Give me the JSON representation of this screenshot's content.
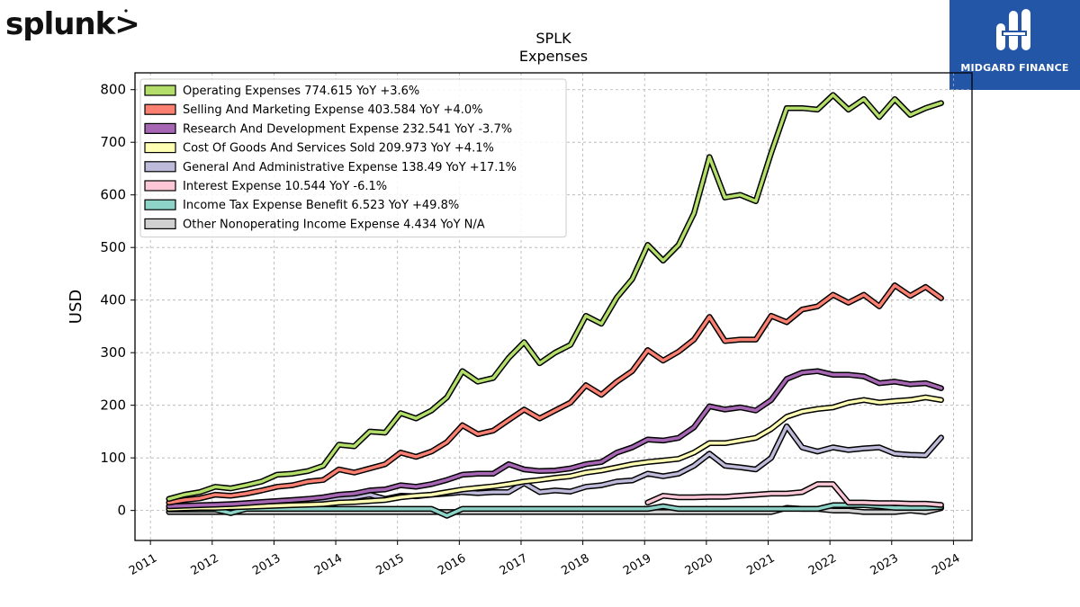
{
  "brand": {
    "left_logo_text": "splunk>",
    "right_logo_text": "MIDGARD FINANCE",
    "right_logo_bg": "#2456a8"
  },
  "chart_data": {
    "type": "line",
    "title": "SPLK",
    "subtitle": "Expenses",
    "xlabel": "",
    "ylabel": "USD",
    "xlim": [
      2010.75,
      2024.3
    ],
    "ylim": [
      -57,
      832
    ],
    "grid": true,
    "legend_position": "top-left",
    "x_ticks": [
      "2011",
      "2012",
      "2013",
      "2014",
      "2015",
      "2016",
      "2017",
      "2018",
      "2019",
      "2020",
      "2021",
      "2022",
      "2023",
      "2024"
    ],
    "y_ticks": [
      "0",
      "100",
      "200",
      "300",
      "400",
      "500",
      "600",
      "700",
      "800"
    ],
    "x": [
      2011.3,
      2011.55,
      2011.8,
      2012.05,
      2012.3,
      2012.55,
      2012.8,
      2013.05,
      2013.3,
      2013.55,
      2013.8,
      2014.05,
      2014.3,
      2014.55,
      2014.8,
      2015.05,
      2015.3,
      2015.55,
      2015.8,
      2016.05,
      2016.3,
      2016.55,
      2016.8,
      2017.05,
      2017.3,
      2017.55,
      2017.8,
      2018.05,
      2018.3,
      2018.55,
      2018.8,
      2019.05,
      2019.3,
      2019.55,
      2019.8,
      2020.05,
      2020.3,
      2020.55,
      2020.8,
      2021.05,
      2021.3,
      2021.55,
      2021.8,
      2022.05,
      2022.3,
      2022.55,
      2022.8,
      2023.05,
      2023.3,
      2023.55,
      2023.8
    ],
    "series": [
      {
        "name": "Other Nonoperating Income Expense",
        "label": "Other Nonoperating Income Expense  4.434 YoY N/A",
        "color": "#d0d0d0",
        "values": [
          -3,
          -3,
          -3,
          -3,
          -3,
          -3,
          -3,
          -3,
          -3,
          -3,
          -3,
          -3,
          -3,
          -3,
          -3,
          -3,
          -3,
          -3,
          -3,
          -3,
          -3,
          -3,
          -3,
          -3,
          -3,
          -3,
          -3,
          -3,
          -3,
          -3,
          -3,
          -3,
          -3,
          -3,
          -3,
          -3,
          -3,
          -3,
          -3,
          -3,
          5,
          3,
          3,
          0,
          0,
          -3,
          -3,
          -3,
          0,
          -3,
          4.4
        ]
      },
      {
        "name": "Income Tax Expense Benefit",
        "label": "Income Tax Expense Benefit  6.523 YoY +49.8%",
        "color": "#8dd3c7",
        "values": [
          2,
          2,
          2,
          2,
          -5,
          3,
          3,
          3,
          3,
          3,
          3,
          3,
          3,
          3,
          3,
          3,
          3,
          3,
          -10,
          3,
          3,
          3,
          3,
          3,
          3,
          3,
          3,
          3,
          3,
          3,
          3,
          3,
          8,
          3,
          3,
          3,
          3,
          3,
          3,
          3,
          3,
          3,
          3,
          10,
          10,
          10,
          8,
          5,
          5,
          5,
          6.5
        ]
      },
      {
        "name": "Interest Expense",
        "label": "Interest Expense  10.544 YoY -6.1%",
        "color": "#fbc6d6",
        "values": [
          null,
          null,
          null,
          null,
          null,
          null,
          null,
          null,
          null,
          null,
          null,
          null,
          null,
          null,
          null,
          null,
          null,
          null,
          null,
          null,
          null,
          null,
          null,
          null,
          null,
          null,
          null,
          null,
          null,
          null,
          null,
          15,
          28,
          25,
          25,
          26,
          26,
          28,
          30,
          32,
          32,
          35,
          50,
          50,
          15,
          15,
          14,
          14,
          13,
          13,
          10.5
        ]
      },
      {
        "name": "General And Administrative Expense",
        "label": "General And Administrative Expense  138.49 YoY +17.1%",
        "color": "#bebada",
        "values": [
          8,
          8,
          9,
          10,
          12,
          13,
          14,
          16,
          17,
          17,
          18,
          22,
          25,
          30,
          22,
          28,
          27,
          30,
          32,
          35,
          33,
          35,
          35,
          52,
          35,
          38,
          36,
          45,
          48,
          55,
          57,
          70,
          65,
          70,
          85,
          108,
          85,
          82,
          78,
          100,
          160,
          120,
          112,
          120,
          115,
          118,
          120,
          108,
          106,
          105,
          138.5
        ]
      },
      {
        "name": "Cost Of Goods And Services Sold",
        "label": "Cost Of Goods And Services Sold  209.973 YoY +4.1%",
        "color": "#ffffb3",
        "values": [
          3,
          4,
          5,
          5,
          6,
          7,
          8,
          9,
          10,
          11,
          12,
          15,
          16,
          18,
          20,
          25,
          28,
          30,
          35,
          40,
          43,
          46,
          50,
          55,
          58,
          62,
          65,
          72,
          76,
          82,
          88,
          92,
          95,
          98,
          110,
          128,
          128,
          133,
          138,
          155,
          178,
          188,
          193,
          196,
          205,
          210,
          205,
          208,
          210,
          215,
          210
        ]
      },
      {
        "name": "Research And Development Expense",
        "label": "Research And Development Expense  232.541 YoY -3.7%",
        "color": "#a666b4",
        "values": [
          8,
          9,
          10,
          11,
          12,
          14,
          16,
          18,
          20,
          22,
          25,
          30,
          32,
          38,
          40,
          48,
          45,
          50,
          58,
          68,
          70,
          70,
          88,
          78,
          75,
          76,
          80,
          88,
          92,
          110,
          120,
          135,
          133,
          138,
          158,
          198,
          192,
          196,
          190,
          210,
          250,
          262,
          265,
          258,
          258,
          255,
          242,
          245,
          240,
          242,
          232.5
        ]
      },
      {
        "name": "Selling And Marketing Expense",
        "label": "Selling And Marketing Expense  403.584 YoY +4.0%",
        "color": "#fb8072",
        "values": [
          15,
          20,
          23,
          30,
          28,
          32,
          38,
          45,
          48,
          55,
          58,
          78,
          72,
          80,
          88,
          110,
          102,
          112,
          130,
          162,
          145,
          152,
          172,
          192,
          175,
          190,
          205,
          238,
          220,
          245,
          265,
          305,
          285,
          302,
          325,
          368,
          322,
          325,
          325,
          370,
          358,
          382,
          388,
          410,
          395,
          410,
          388,
          428,
          408,
          425,
          403.6
        ]
      },
      {
        "name": "Operating Expenses",
        "label": "Operating Expenses  774.615 YoY +3.6%",
        "color": "#b3de69",
        "values": [
          22,
          30,
          35,
          45,
          42,
          48,
          55,
          68,
          70,
          75,
          85,
          125,
          122,
          150,
          148,
          185,
          175,
          190,
          215,
          265,
          245,
          252,
          290,
          320,
          280,
          300,
          315,
          370,
          355,
          405,
          440,
          505,
          475,
          505,
          565,
          672,
          595,
          600,
          588,
          680,
          765,
          765,
          762,
          790,
          762,
          782,
          748,
          782,
          752,
          765,
          774.6
        ]
      }
    ]
  }
}
